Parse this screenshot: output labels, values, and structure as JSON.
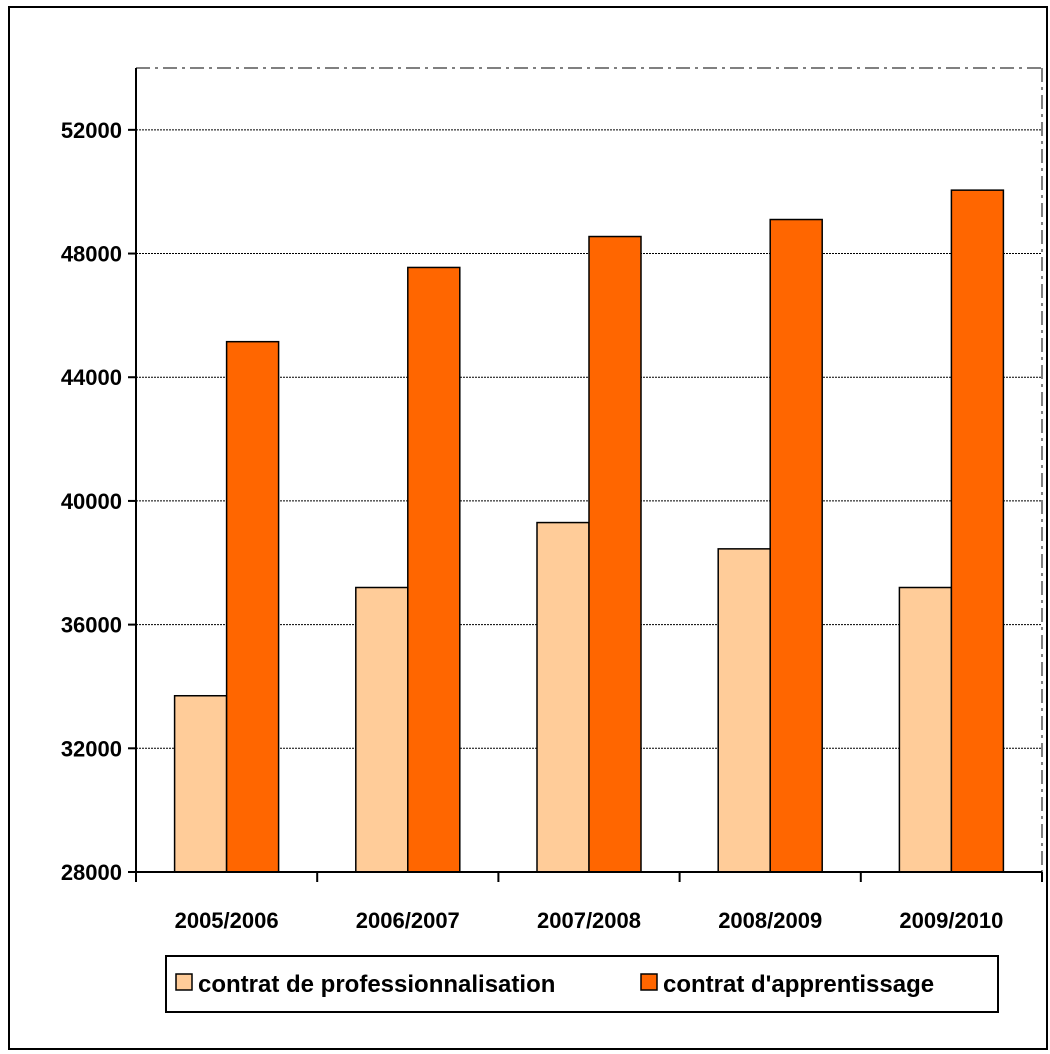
{
  "chart_data": {
    "type": "bar",
    "categories": [
      "2005/2006",
      "2006/2007",
      "2007/2008",
      "2008/2009",
      "2009/2010"
    ],
    "series": [
      {
        "name": "contrat de professionnalisation",
        "values": [
          33700,
          37200,
          39300,
          38450,
          37200
        ],
        "color": "#FFCC99"
      },
      {
        "name": "contrat d'apprentissage",
        "values": [
          45150,
          47550,
          48550,
          49100,
          50050
        ],
        "color": "#FF6600"
      }
    ],
    "ylim": [
      28000,
      54000
    ],
    "yticks": [
      28000,
      32000,
      36000,
      40000,
      44000,
      48000,
      52000
    ],
    "grid": true,
    "legend_position": "bottom"
  }
}
